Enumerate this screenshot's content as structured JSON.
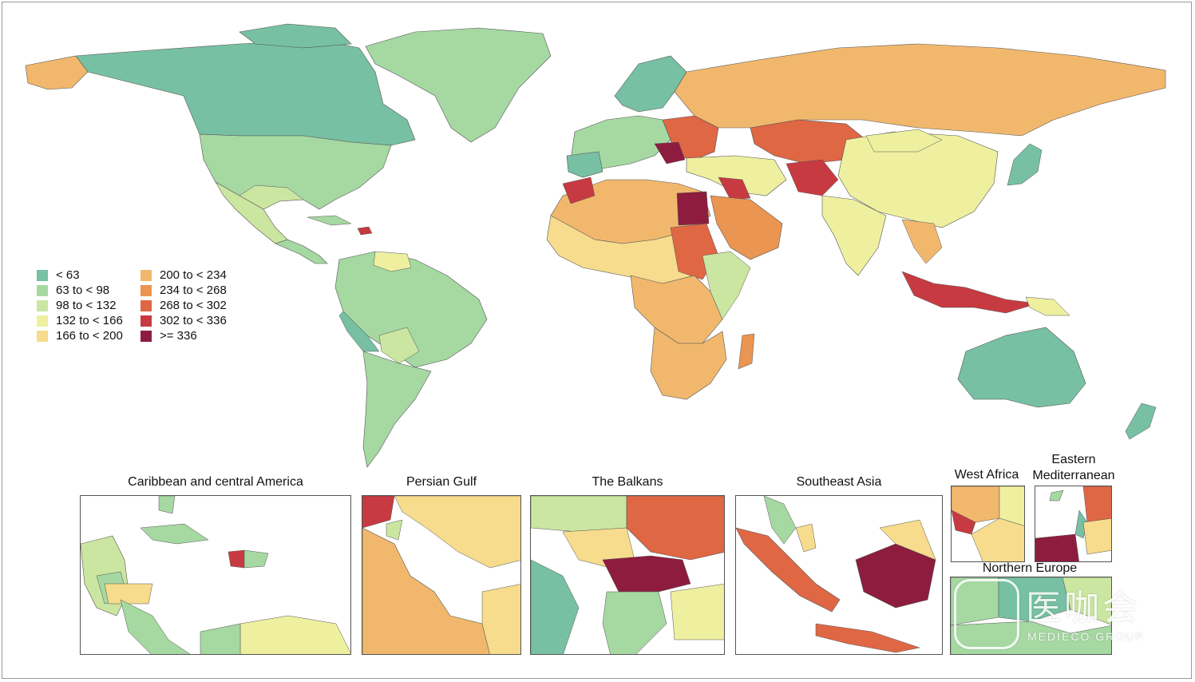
{
  "legend": {
    "items": [
      {
        "label": "< 63",
        "color": "#77c0a3"
      },
      {
        "label": "63 to < 98",
        "color": "#a6d8a2"
      },
      {
        "label": "98 to < 132",
        "color": "#cbe6a1"
      },
      {
        "label": "132 to < 166",
        "color": "#eef0a0"
      },
      {
        "label": "166 to < 200",
        "color": "#f6dc8c"
      },
      {
        "label": "200 to < 234",
        "color": "#f1b86d"
      },
      {
        "label": "234 to < 268",
        "color": "#ea9552"
      },
      {
        "label": "268 to < 302",
        "color": "#df6744"
      },
      {
        "label": "302 to < 336",
        "color": "#c83a41"
      },
      {
        "label": ">= 336",
        "color": "#8e1c3e"
      }
    ]
  },
  "insets": {
    "caribbean": "Caribbean and central America",
    "persian_gulf": "Persian Gulf",
    "balkans": "The Balkans",
    "southeast_asia": "Southeast Asia",
    "west_africa": "West Africa",
    "eastern_med": "Eastern Mediterranean",
    "northern_europe": "Northern Europe"
  },
  "watermark": {
    "main": "医咖会",
    "sub": "MEDIECO GROUP"
  }
}
